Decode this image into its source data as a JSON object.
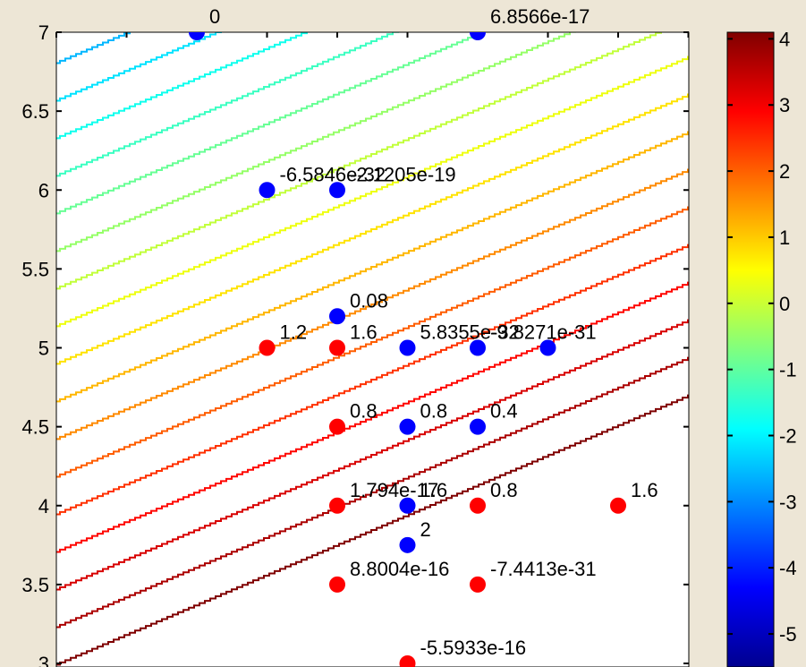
{
  "chart_data": {
    "type": "scatter",
    "title": "",
    "xlabel": "",
    "ylabel": "",
    "xlim": [
      0,
      9
    ],
    "ylim": [
      3,
      7
    ],
    "yticks": [
      3,
      3.5,
      4,
      4.5,
      5,
      5.5,
      6,
      6.5,
      7
    ],
    "ytick_labels": [
      "3",
      "3.5",
      "4",
      "4.5",
      "5",
      "5.5",
      "6",
      "6.5",
      "7"
    ],
    "xtick_labels_shown": false,
    "grid": false,
    "background": "#ffffff",
    "contour": {
      "levels_note_hidden": true,
      "field_slope": "decreasing toward upper-right",
      "colormap": "jet"
    },
    "colorbar": {
      "min": -5.5,
      "max": 4.1,
      "ticks": [
        4,
        3,
        2,
        1,
        0,
        -1,
        -2,
        -3,
        -4,
        -5
      ],
      "tick_labels": [
        "4",
        "3",
        "2",
        "1",
        "0",
        "-1",
        "-2",
        "-3",
        "-4",
        "-5"
      ],
      "colormap": "jet"
    },
    "point_colors": {
      "red": "#ff0000",
      "blue": "#0000ff"
    },
    "points": [
      {
        "x": 2,
        "y": 7,
        "color": "blue",
        "label": "0"
      },
      {
        "x": 6,
        "y": 7,
        "color": "blue",
        "label": "6.8566e-17"
      },
      {
        "x": 3,
        "y": 6,
        "color": "blue",
        "label": "-6.5846e-32"
      },
      {
        "x": 4,
        "y": 6,
        "color": "blue",
        "label": "-2.1205e-19"
      },
      {
        "x": 4,
        "y": 5.2,
        "color": "blue",
        "label": "0.08"
      },
      {
        "x": 3,
        "y": 5,
        "color": "red",
        "label": "1.2"
      },
      {
        "x": 4,
        "y": 5,
        "color": "red",
        "label": "1.6"
      },
      {
        "x": 5,
        "y": 5,
        "color": "blue",
        "label": "5.8355e-32"
      },
      {
        "x": 6,
        "y": 5,
        "color": "blue",
        "label": "-9.8271e-31"
      },
      {
        "x": 7,
        "y": 5,
        "color": "blue",
        "label": ""
      },
      {
        "x": 4,
        "y": 4.5,
        "color": "red",
        "label": "0.8"
      },
      {
        "x": 5,
        "y": 4.5,
        "color": "blue",
        "label": "0.8"
      },
      {
        "x": 6,
        "y": 4.5,
        "color": "blue",
        "label": "0.4"
      },
      {
        "x": 4,
        "y": 4,
        "color": "red",
        "label": "1.794e-17"
      },
      {
        "x": 5,
        "y": 4,
        "color": "blue",
        "label": "1.6"
      },
      {
        "x": 6,
        "y": 4,
        "color": "red",
        "label": "0.8"
      },
      {
        "x": 8,
        "y": 4,
        "color": "red",
        "label": "1.6"
      },
      {
        "x": 5,
        "y": 3.75,
        "color": "blue",
        "label": "2"
      },
      {
        "x": 4,
        "y": 3.5,
        "color": "red",
        "label": "8.8004e-16"
      },
      {
        "x": 6,
        "y": 3.5,
        "color": "red",
        "label": "-7.4413e-31"
      },
      {
        "x": 5,
        "y": 3,
        "color": "red",
        "label": "-5.5933e-16"
      }
    ]
  }
}
